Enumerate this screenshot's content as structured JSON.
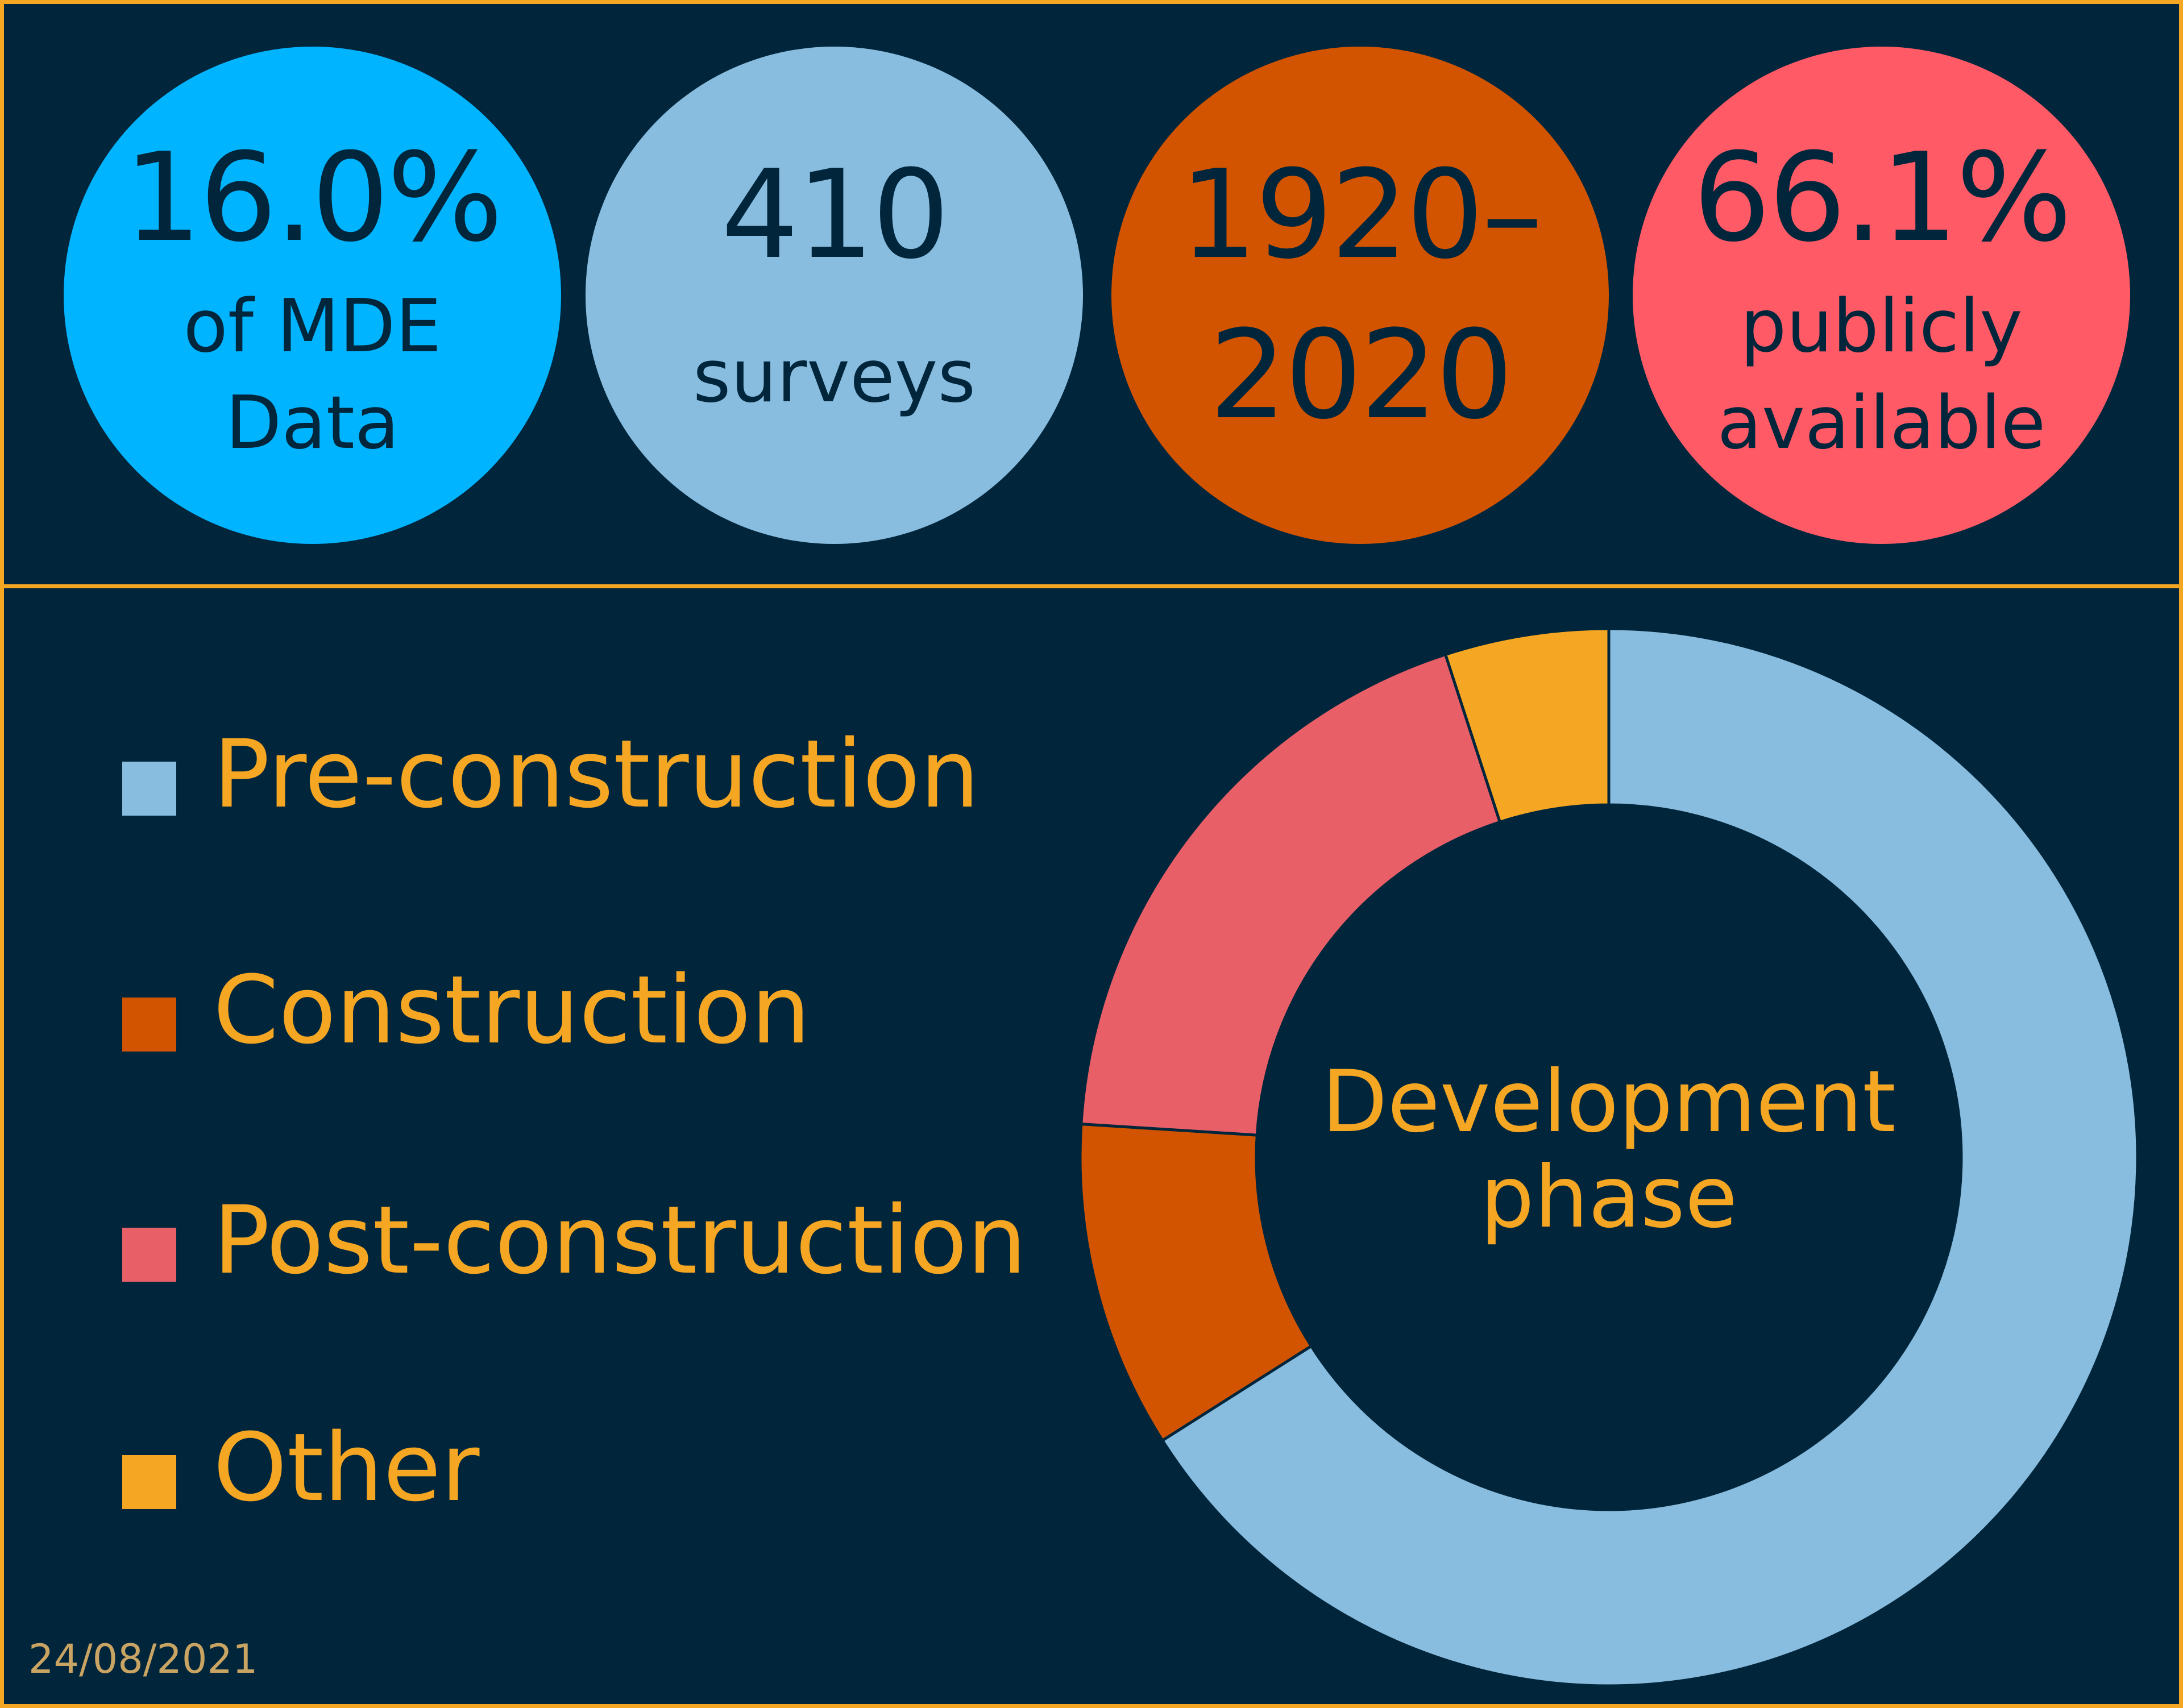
{
  "stats": [
    {
      "big": "16.0%",
      "small_line1": "of MDE",
      "small_line2": "Data",
      "color": "#00b4ff"
    },
    {
      "big": "410",
      "small_line1": "surveys",
      "small_line2": "",
      "color": "#88bde0"
    },
    {
      "big_line1": "1920–",
      "big_line2": "2020",
      "color": "#d35400"
    },
    {
      "big": "66.1%",
      "small_line1": "publicly",
      "small_line2": "available",
      "color": "#ff5a66"
    }
  ],
  "chart_data": {
    "type": "pie",
    "donut": true,
    "center_label_line1": "Development",
    "center_label_line2": "phase",
    "legend_position": "left",
    "categories": [
      "Pre-construction",
      "Construction",
      "Post-construction",
      "Other"
    ],
    "values": [
      66,
      10,
      19,
      5
    ],
    "colors": [
      "#88bde0",
      "#d35400",
      "#e85f68",
      "#f5a623"
    ]
  },
  "colors": {
    "background": "#01263b",
    "accent": "#f5a623"
  },
  "footer": {
    "date": "24/08/2021"
  }
}
